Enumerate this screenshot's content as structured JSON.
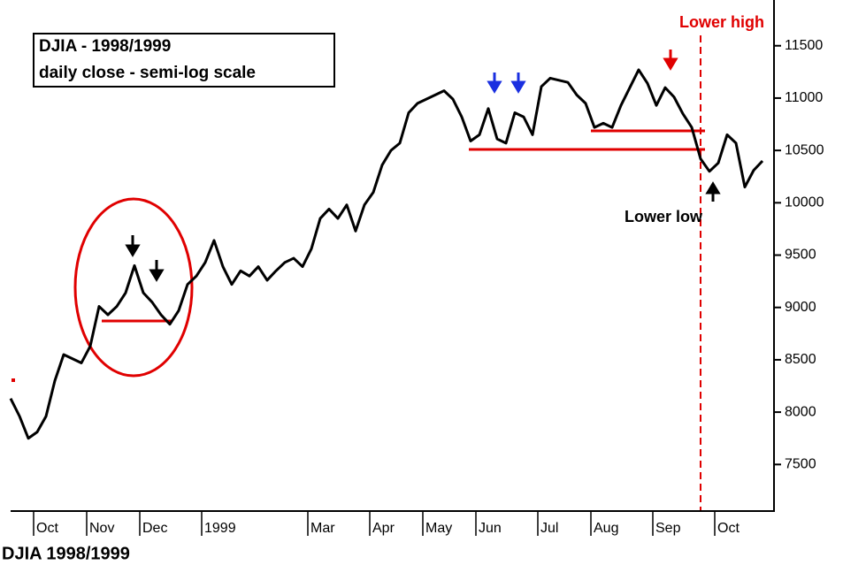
{
  "chart_data": {
    "type": "line",
    "title": "DJIA - 1998/1999",
    "subtitle": "daily close - semi-log scale",
    "caption": "DJIA 1998/1999",
    "annotations": [
      "Lower high",
      "Lower low"
    ],
    "color": "#000000",
    "categories": [
      null,
      null,
      null,
      "Oct",
      null,
      null,
      null,
      null,
      null,
      "Nov",
      null,
      null,
      null,
      null,
      null,
      "Dec",
      null,
      null,
      null,
      null,
      null,
      null,
      "1999",
      null,
      null,
      null,
      null,
      null,
      null,
      null,
      null,
      null,
      null,
      null,
      "Mar",
      null,
      null,
      null,
      null,
      null,
      null,
      "Apr",
      null,
      null,
      null,
      null,
      null,
      "May",
      null,
      null,
      null,
      null,
      null,
      "Jun",
      null,
      null,
      null,
      null,
      null,
      null,
      "Jul",
      null,
      null,
      null,
      null,
      null,
      "Aug",
      null,
      null,
      null,
      null,
      null,
      null,
      "Sep",
      null,
      null,
      null,
      null,
      null,
      null,
      "Oct",
      null,
      null,
      null,
      null,
      null
    ],
    "values": [
      8130,
      7962,
      7750,
      7810,
      7960,
      8300,
      8550,
      8510,
      8470,
      8630,
      9010,
      8930,
      9010,
      9140,
      9400,
      9140,
      9050,
      8930,
      8840,
      8970,
      9220,
      9300,
      9430,
      9640,
      9390,
      9220,
      9350,
      9300,
      9390,
      9260,
      9350,
      9430,
      9470,
      9390,
      9560,
      9850,
      9940,
      9850,
      9980,
      9730,
      9980,
      10100,
      10360,
      10500,
      10570,
      10860,
      10950,
      10990,
      11030,
      11070,
      10990,
      10820,
      10590,
      10650,
      10900,
      10610,
      10570,
      10860,
      10820,
      10650,
      11110,
      11190,
      11170,
      11150,
      11030,
      10950,
      10720,
      10760,
      10720,
      10930,
      11100,
      11270,
      11140,
      10930,
      11100,
      11010,
      10850,
      10720,
      10420,
      10300,
      10380,
      10650,
      10570,
      10150,
      10310,
      10400
    ],
    "ylim": [
      7055,
      11937
    ],
    "yticks": [
      7500,
      8000,
      8500,
      9000,
      9500,
      10000,
      10500,
      11000,
      11500
    ]
  }
}
